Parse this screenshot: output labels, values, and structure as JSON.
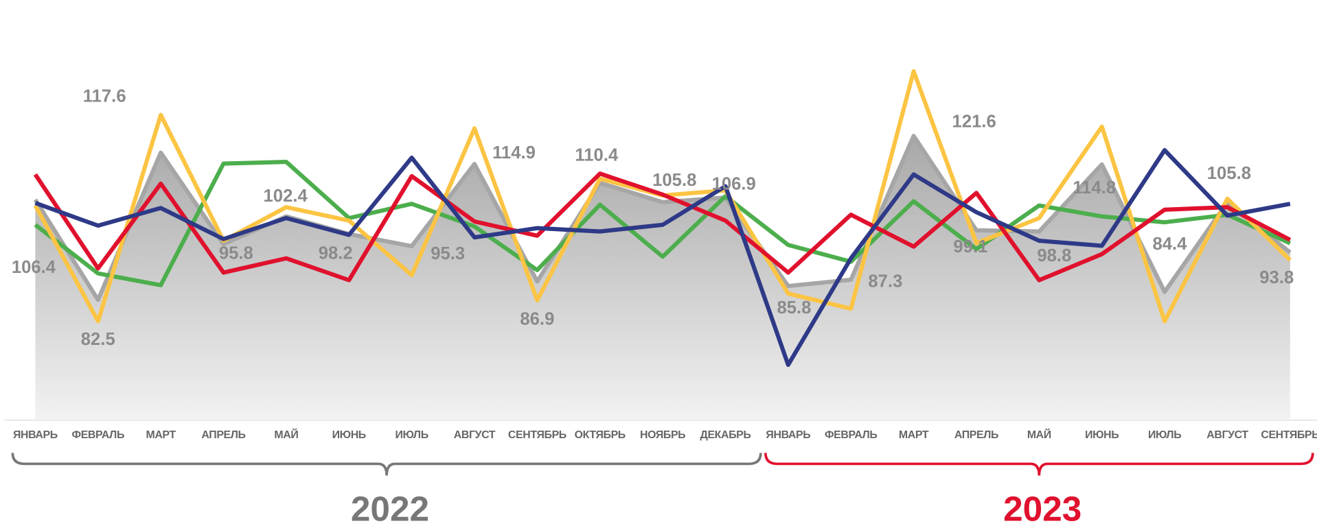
{
  "chart_data": {
    "type": "line",
    "categories": [
      "ЯНВАРЬ",
      "ФЕВРАЛЬ",
      "МАРТ",
      "АПРЕЛЬ",
      "МАЙ",
      "ИЮНЬ",
      "ИЮЛЬ",
      "АВГУСТ",
      "СЕНТЯБРЬ",
      "ОКТЯБРЬ",
      "НОЯБРЬ",
      "ДЕКАБРЬ",
      "ЯНВАРЬ",
      "ФЕВРАЛЬ",
      "МАРТ",
      "АПРЕЛЬ",
      "МАЙ",
      "ИЮНЬ",
      "ИЮЛЬ",
      "АВГУСТ",
      "СЕНТЯБРЬ"
    ],
    "ylim": [
      54,
      154
    ],
    "series": [
      {
        "kind": "area",
        "color": "#a6a6a6",
        "values": [
          106.4,
          82.5,
          117.6,
          95.8,
          102.4,
          98.2,
          95.3,
          114.9,
          86.9,
          110.4,
          105.8,
          106.9,
          85.8,
          87.3,
          121.6,
          99.1,
          98.8,
          114.8,
          84.4,
          105.8,
          93.8
        ]
      },
      {
        "kind": "line",
        "color": "#4cae4c",
        "values": [
          100.4,
          88.8,
          86.0,
          115.0,
          115.4,
          102.0,
          105.4,
          100.0,
          89.6,
          105.2,
          92.8,
          107.2,
          95.6,
          91.6,
          106.0,
          94.6,
          105.0,
          102.4,
          101.0,
          102.8,
          96.0
        ]
      },
      {
        "kind": "line",
        "color": "#fcc443",
        "values": [
          105.0,
          77.4,
          126.6,
          96.6,
          104.6,
          101.4,
          88.4,
          123.4,
          82.4,
          111.4,
          107.4,
          108.6,
          84.0,
          80.4,
          137.0,
          96.0,
          102.0,
          123.8,
          77.4,
          106.6,
          92.0
        ]
      },
      {
        "kind": "line",
        "color": "#e0112d",
        "values": [
          112.4,
          90.0,
          110.2,
          89.0,
          92.4,
          87.2,
          112.0,
          101.2,
          97.8,
          112.6,
          107.6,
          101.4,
          89.0,
          102.8,
          95.2,
          108.0,
          87.2,
          93.4,
          104.0,
          104.6,
          96.8
        ]
      },
      {
        "kind": "line",
        "color": "#2e3a87",
        "values": [
          105.6,
          100.2,
          104.4,
          97.0,
          102.0,
          98.0,
          116.4,
          97.4,
          99.6,
          98.8,
          100.4,
          109.6,
          67.0,
          92.4,
          112.4,
          103.4,
          96.6,
          95.4,
          118.2,
          102.6,
          105.4
        ]
      }
    ],
    "groups": [
      {
        "label": "2022",
        "color": "#777777",
        "from": 0,
        "to": 11
      },
      {
        "label": "2023",
        "color": "#e0112d",
        "from": 12,
        "to": 20
      }
    ]
  }
}
